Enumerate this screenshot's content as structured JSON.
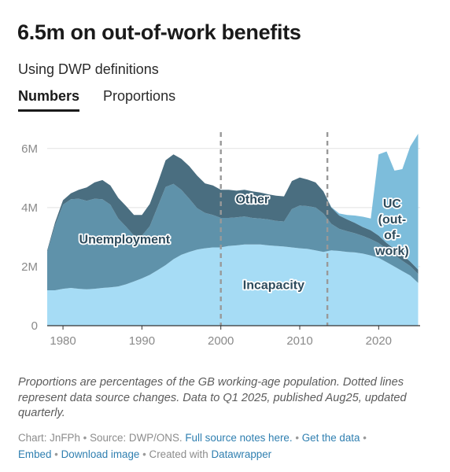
{
  "title": "6.5m on out-of-work benefits",
  "subtitle": "Using DWP definitions",
  "tabs": [
    "Numbers",
    "Proportions"
  ],
  "notes": "Proportions are percentages of the GB working-age population. Dotted lines represent data source changes. Data to Q1 2025, published Aug25, updated quarterly.",
  "footer": {
    "chart_by": "Chart: JnFPh",
    "source": "Source: DWP/ONS.",
    "source_notes_link": "Full source notes here.",
    "get_data_link": "Get the data",
    "embed_link": "Embed",
    "download_link": "Download image",
    "created_with": "Created with",
    "datawrapper_link": "Datawrapper",
    "separator": "•"
  },
  "colors": {
    "incapacity": "#a6dcf5",
    "unemployment": "#5f92aa",
    "other": "#4a6e80",
    "uc": "#7dbddb",
    "axis": "#333333",
    "grid": "#e2e2e2",
    "dotted": "#999999"
  },
  "chart_data": {
    "type": "area",
    "stacked": true,
    "x_range": [
      1978,
      2025.25
    ],
    "ylim": [
      0,
      6500000
    ],
    "y_ticks": [
      {
        "value": 0,
        "label": "0"
      },
      {
        "value": 2000000,
        "label": "2M"
      },
      {
        "value": 4000000,
        "label": "4M"
      },
      {
        "value": 6000000,
        "label": "6M"
      }
    ],
    "x_ticks": [
      1980,
      1990,
      2000,
      2010,
      2020
    ],
    "grid": true,
    "vertical_dotted_lines": [
      2000,
      2013.5
    ],
    "x": [
      1978,
      1979,
      1980,
      1981,
      1982,
      1983,
      1984,
      1985,
      1986,
      1987,
      1988,
      1989,
      1990,
      1991,
      1992,
      1993,
      1994,
      1995,
      1996,
      1997,
      1998,
      1999,
      2000,
      2001,
      2002,
      2003,
      2004,
      2005,
      2006,
      2007,
      2008,
      2009,
      2010,
      2011,
      2012,
      2013,
      2014,
      2015,
      2016,
      2017,
      2018,
      2019,
      2020,
      2021,
      2022,
      2023,
      2024,
      2025
    ],
    "series": [
      {
        "name": "Incapacity",
        "label": "Incapacity",
        "values": [
          1200000,
          1200000,
          1250000,
          1280000,
          1250000,
          1230000,
          1250000,
          1280000,
          1300000,
          1330000,
          1400000,
          1500000,
          1600000,
          1720000,
          1880000,
          2050000,
          2250000,
          2400000,
          2500000,
          2580000,
          2620000,
          2650000,
          2650000,
          2700000,
          2720000,
          2750000,
          2750000,
          2750000,
          2720000,
          2700000,
          2680000,
          2650000,
          2620000,
          2600000,
          2550000,
          2500000,
          2550000,
          2530000,
          2500000,
          2480000,
          2440000,
          2380000,
          2300000,
          2150000,
          2000000,
          1850000,
          1700000,
          1450000
        ]
      },
      {
        "name": "Unemployment",
        "label": "Unemployment",
        "values": [
          1300000,
          2200000,
          2850000,
          3000000,
          3050000,
          3000000,
          3050000,
          3000000,
          2800000,
          2300000,
          1950000,
          1550000,
          1450000,
          1650000,
          2150000,
          2650000,
          2550000,
          2200000,
          1800000,
          1400000,
          1200000,
          1100000,
          1000000,
          950000,
          950000,
          950000,
          900000,
          880000,
          880000,
          850000,
          850000,
          1300000,
          1450000,
          1450000,
          1450000,
          1300000,
          900000,
          750000,
          700000,
          650000,
          600000,
          550000,
          500000,
          450000,
          400000,
          350000,
          320000,
          300000
        ]
      },
      {
        "name": "Other",
        "label": "Other",
        "values": [
          50000,
          100000,
          150000,
          200000,
          300000,
          450000,
          550000,
          650000,
          650000,
          700000,
          700000,
          700000,
          700000,
          750000,
          800000,
          900000,
          1000000,
          1050000,
          1100000,
          1100000,
          1000000,
          1000000,
          950000,
          950000,
          900000,
          900000,
          900000,
          880000,
          850000,
          850000,
          850000,
          950000,
          950000,
          900000,
          850000,
          750000,
          550000,
          450000,
          400000,
          350000,
          300000,
          300000,
          250000,
          200000,
          200000,
          200000,
          150000,
          150000
        ]
      },
      {
        "name": "UC",
        "label": "UC (out-of-work)",
        "values": [
          0,
          0,
          0,
          0,
          0,
          0,
          0,
          0,
          0,
          0,
          0,
          0,
          0,
          0,
          0,
          0,
          0,
          0,
          0,
          0,
          0,
          0,
          0,
          0,
          0,
          0,
          0,
          0,
          0,
          0,
          0,
          0,
          0,
          0,
          0,
          0,
          20000,
          70000,
          150000,
          250000,
          350000,
          400000,
          2750000,
          3100000,
          2650000,
          2900000,
          3900000,
          4600000
        ]
      }
    ],
    "area_labels": [
      {
        "series": "Unemployment",
        "lines": [
          "Unemployment"
        ],
        "x": 1987.8,
        "y": 2780000
      },
      {
        "series": "Other",
        "lines": [
          "Other"
        ],
        "x": 2004,
        "y": 4140000
      },
      {
        "series": "Incapacity",
        "lines": [
          "Incapacity"
        ],
        "x": 2006.7,
        "y": 1240000
      },
      {
        "series": "UC",
        "lines": [
          "UC",
          "(out-",
          "of-",
          "work)"
        ],
        "x": 2021.7,
        "y": 4000000
      }
    ]
  }
}
